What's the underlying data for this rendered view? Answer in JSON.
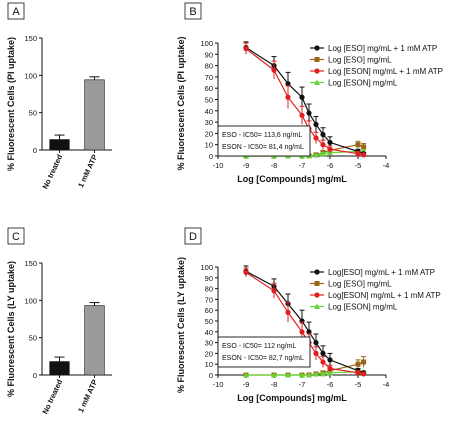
{
  "colors": {
    "black": "#111111",
    "brown": "#9c6416",
    "red": "#e02020",
    "green": "#66d436",
    "grey": "#9a9a9a"
  },
  "chart_data": [
    {
      "panel": "A",
      "type": "bar",
      "ylabel": "% Fluorescent Cells (PI uptake)",
      "categories": [
        "No treated",
        "1 mM ATP"
      ],
      "values": [
        14,
        94
      ],
      "errors": [
        6,
        4
      ],
      "bar_colors": [
        "#111111",
        "#9a9a9a"
      ],
      "ylim": [
        0,
        150
      ],
      "yticks": [
        0,
        50,
        100,
        150
      ]
    },
    {
      "panel": "B",
      "type": "line",
      "xlabel": "Log [Compounds] mg/mL",
      "ylabel": "% Fluorescent Cells (PI uptake)",
      "xlim": [
        -10,
        -4
      ],
      "ylim": [
        0,
        100
      ],
      "xticks": [
        -10,
        -9,
        -8,
        -7,
        -6,
        -5,
        -4
      ],
      "yticks": [
        0,
        10,
        20,
        30,
        40,
        50,
        60,
        70,
        80,
        90,
        100
      ],
      "annotation": [
        "ESO - IC50= 113,6 ng/mL",
        "ESON - IC50= 81,4 ng/mL"
      ],
      "series": [
        {
          "name": "Log [ESO] mg/mL + 1 mM ATP",
          "color": "#111111",
          "marker": "circle",
          "x": [
            -9,
            -8,
            -7.5,
            -7,
            -6.75,
            -6.5,
            -6.25,
            -6,
            -5,
            -4.8
          ],
          "y": [
            96,
            80,
            64,
            52,
            38,
            28,
            19,
            12,
            4,
            2
          ],
          "err": [
            5,
            8,
            10,
            9,
            8,
            7,
            6,
            5,
            2,
            1
          ]
        },
        {
          "name": "Log [ESO] mg/mL",
          "color": "#9c6416",
          "marker": "square",
          "x": [
            -9,
            -8,
            -7.5,
            -7,
            -6.75,
            -6.5,
            -6.25,
            -6,
            -5,
            -4.8
          ],
          "y": [
            0,
            0,
            0,
            0,
            0,
            1,
            3,
            5,
            10,
            8
          ],
          "err": [
            0,
            0,
            0,
            0,
            0,
            1,
            2,
            2,
            3,
            3
          ]
        },
        {
          "name": "Log [ESON] mg/mL + 1 mM ATP",
          "color": "#e02020",
          "marker": "circle",
          "x": [
            -9,
            -8,
            -7.5,
            -7,
            -6.75,
            -6.5,
            -6.25,
            -6,
            -5,
            -4.8
          ],
          "y": [
            95,
            76,
            52,
            36,
            24,
            16,
            10,
            6,
            2,
            1
          ],
          "err": [
            5,
            8,
            10,
            8,
            7,
            5,
            4,
            3,
            2,
            1
          ]
        },
        {
          "name": "Log [ESON] mg/mL",
          "color": "#66d436",
          "marker": "triangle",
          "x": [
            -9,
            -8,
            -7.5,
            -7,
            -6.75,
            -6.5,
            -6.25,
            -6,
            -5,
            -4.8
          ],
          "y": [
            0,
            0,
            0,
            0,
            0,
            1,
            2,
            3,
            4,
            4
          ],
          "err": [
            0,
            0,
            0,
            0,
            0,
            0,
            1,
            1,
            1,
            1
          ]
        }
      ]
    },
    {
      "panel": "C",
      "type": "bar",
      "ylabel": "% Fluorescent Cells (LY uptake)",
      "categories": [
        "No treated",
        "1 mM ATP"
      ],
      "values": [
        18,
        93
      ],
      "errors": [
        6,
        4
      ],
      "bar_colors": [
        "#111111",
        "#9a9a9a"
      ],
      "ylim": [
        0,
        150
      ],
      "yticks": [
        0,
        50,
        100,
        150
      ]
    },
    {
      "panel": "D",
      "type": "line",
      "xlabel": "Log [Compounds] mg/mL",
      "ylabel": "% Fluorescent Cells (LY uptake)",
      "xlim": [
        -10,
        -4
      ],
      "ylim": [
        0,
        100
      ],
      "xticks": [
        -10,
        -9,
        -8,
        -7,
        -6,
        -5,
        -4
      ],
      "yticks": [
        0,
        10,
        20,
        30,
        40,
        50,
        60,
        70,
        80,
        90,
        100
      ],
      "annotation": [
        "ESO - IC50= 112 ng/mL",
        "ESON - IC50= 82,7 ng/mL"
      ],
      "series": [
        {
          "name": "Log[ESO] mg/mL + 1 mM ATP",
          "color": "#111111",
          "marker": "circle",
          "x": [
            -9,
            -8,
            -7.5,
            -7,
            -6.75,
            -6.5,
            -6.25,
            -6,
            -5,
            -4.8
          ],
          "y": [
            96,
            82,
            66,
            50,
            40,
            30,
            20,
            14,
            4,
            2
          ],
          "err": [
            5,
            7,
            9,
            10,
            9,
            8,
            7,
            6,
            2,
            1
          ]
        },
        {
          "name": "Log [ESO] mg/mL",
          "color": "#9c6416",
          "marker": "square",
          "x": [
            -9,
            -8,
            -7.5,
            -7,
            -6.75,
            -6.5,
            -6.25,
            -6,
            -5,
            -4.8
          ],
          "y": [
            0,
            0,
            0,
            0,
            0,
            1,
            2,
            4,
            10,
            12
          ],
          "err": [
            0,
            0,
            0,
            0,
            0,
            1,
            1,
            2,
            4,
            5
          ]
        },
        {
          "name": "Log[ESON] mg/mL + 1 mM ATP",
          "color": "#e02020",
          "marker": "circle",
          "x": [
            -9,
            -8,
            -7.5,
            -7,
            -6.75,
            -6.5,
            -6.25,
            -6,
            -5,
            -4.8
          ],
          "y": [
            95,
            78,
            58,
            40,
            30,
            20,
            12,
            6,
            2,
            1
          ],
          "err": [
            4,
            7,
            9,
            9,
            8,
            6,
            5,
            3,
            2,
            1
          ]
        },
        {
          "name": "Log [ESON] mg/mL",
          "color": "#66d436",
          "marker": "triangle",
          "x": [
            -9,
            -8,
            -7.5,
            -7,
            -6.75,
            -6.5,
            -6.25,
            -6,
            -5,
            -4.8
          ],
          "y": [
            0,
            0,
            0,
            0,
            0,
            1,
            1,
            2,
            3,
            3
          ],
          "err": [
            0,
            0,
            0,
            0,
            0,
            0,
            1,
            1,
            1,
            1
          ]
        }
      ]
    }
  ]
}
